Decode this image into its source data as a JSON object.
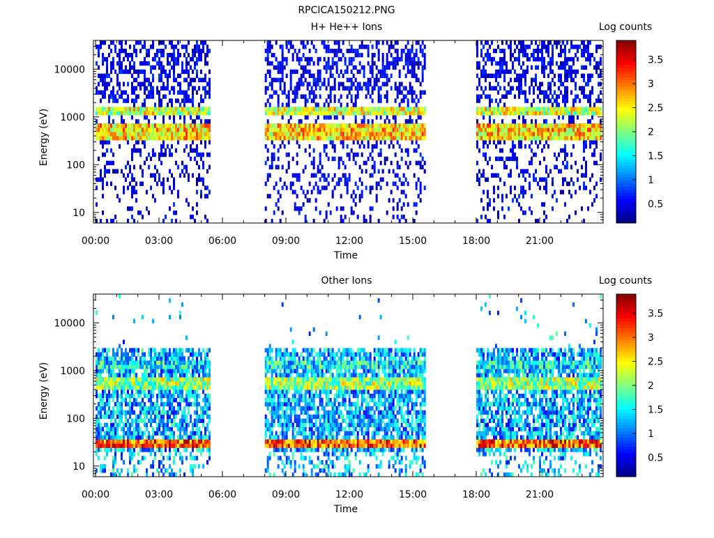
{
  "page_title": "RPCICA150212.PNG",
  "colors": {
    "background": "#ffffff",
    "axis": "#000000"
  },
  "chart_data": [
    {
      "type": "heatmap",
      "title": "H+ He++ Ions",
      "xlabel": "Time",
      "ylabel": "Energy (eV)",
      "x_ticks": [
        "00:00",
        "03:00",
        "06:00",
        "09:00",
        "12:00",
        "15:00",
        "18:00",
        "21:00"
      ],
      "x_tick_hours": [
        0,
        3,
        6,
        9,
        12,
        15,
        18,
        21
      ],
      "xlim_hours": [
        -0.1,
        24.0
      ],
      "y_scale": "log",
      "ylim": [
        6,
        40000
      ],
      "y_ticks": [
        "10",
        "100",
        "1000",
        "10000"
      ],
      "y_tick_values": [
        10,
        100,
        1000,
        10000
      ],
      "data_intervals_hours": [
        [
          0.0,
          5.4
        ],
        [
          8.0,
          15.6
        ],
        [
          18.0,
          23.9
        ]
      ],
      "bands": [
        {
          "emin": 1100,
          "emax": 1500,
          "log_counts": 2.3
        },
        {
          "emin": 300,
          "emax": 800,
          "log_counts": 2.6
        }
      ],
      "colorbar": {
        "label": "Log counts",
        "min": 0.1,
        "max": 3.9,
        "ticks": [
          "0.5",
          "1",
          "1.5",
          "2",
          "2.5",
          "3",
          "3.5"
        ],
        "tick_values": [
          0.5,
          1,
          1.5,
          2,
          2.5,
          3,
          3.5
        ]
      },
      "colormap": "jet",
      "grid": false
    },
    {
      "type": "heatmap",
      "title": "Other Ions",
      "xlabel": "Time",
      "ylabel": "Energy (eV)",
      "x_ticks": [
        "00:00",
        "03:00",
        "06:00",
        "09:00",
        "12:00",
        "15:00",
        "18:00",
        "21:00"
      ],
      "x_tick_hours": [
        0,
        3,
        6,
        9,
        12,
        15,
        18,
        21
      ],
      "xlim_hours": [
        -0.1,
        24.0
      ],
      "y_scale": "log",
      "ylim": [
        6,
        40000
      ],
      "y_ticks": [
        "10",
        "100",
        "1000",
        "10000"
      ],
      "y_tick_values": [
        10,
        100,
        1000,
        10000
      ],
      "data_intervals_hours": [
        [
          0.0,
          5.4
        ],
        [
          8.0,
          15.6
        ],
        [
          18.0,
          23.9
        ]
      ],
      "bands": [
        {
          "emin": 1100,
          "emax": 1500,
          "log_counts": 1.5
        },
        {
          "emin": 400,
          "emax": 700,
          "log_counts": 2.1
        },
        {
          "emin": 25,
          "emax": 40,
          "log_counts": 3.1
        }
      ],
      "colorbar": {
        "label": "Log counts",
        "min": 0.1,
        "max": 3.9,
        "ticks": [
          "0.5",
          "1",
          "1.5",
          "2",
          "2.5",
          "3",
          "3.5"
        ],
        "tick_values": [
          0.5,
          1,
          1.5,
          2,
          2.5,
          3,
          3.5
        ]
      },
      "colormap": "jet",
      "grid": false
    }
  ]
}
